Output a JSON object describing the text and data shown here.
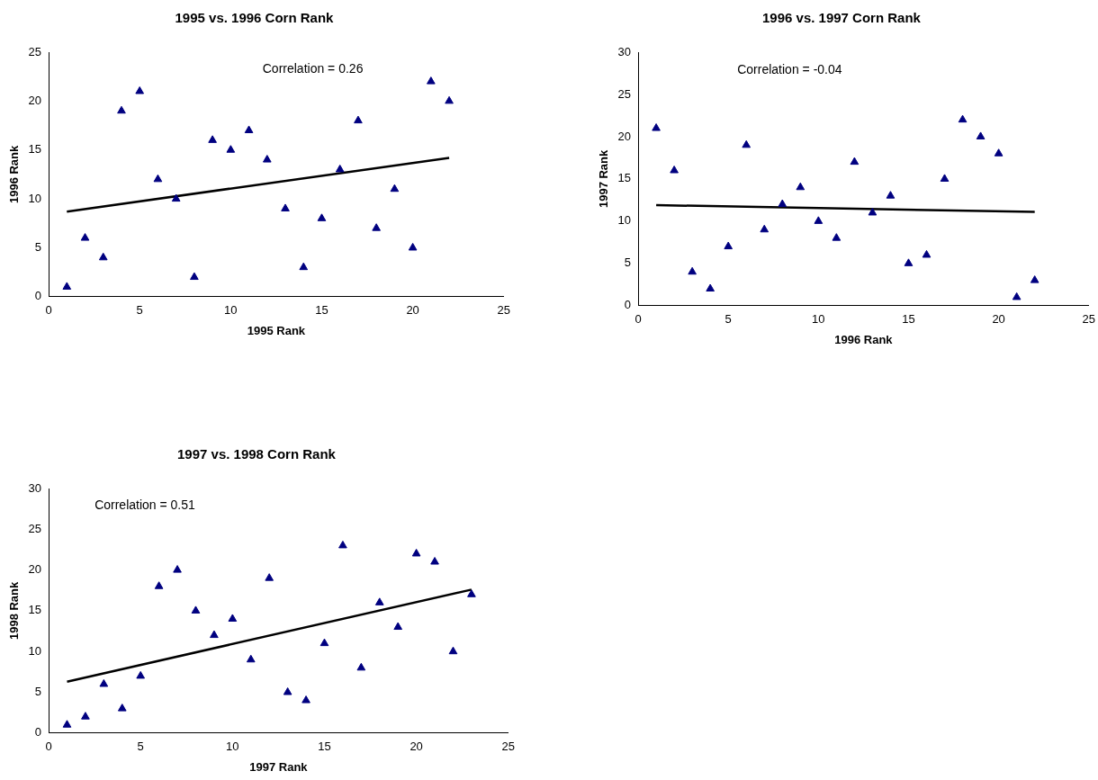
{
  "chart_data": [
    {
      "type": "scatter",
      "title": "1995 vs. 1996 Corn Rank",
      "xlabel": "1995 Rank",
      "ylabel": "1996 Rank",
      "xlim": [
        0,
        25
      ],
      "xticks": [
        0,
        5,
        10,
        15,
        20,
        25
      ],
      "ylim": [
        0,
        25
      ],
      "yticks": [
        0,
        5,
        10,
        15,
        20,
        25
      ],
      "grid": false,
      "legend": false,
      "annotations": [
        "Correlation = 0.26"
      ],
      "series": [
        {
          "color": "#000080",
          "marker": "triangle",
          "x": [
            1,
            2,
            3,
            4,
            5,
            6,
            7,
            8,
            9,
            10,
            11,
            12,
            13,
            14,
            15,
            16,
            17,
            18,
            19,
            20,
            21,
            22
          ],
          "values": [
            1,
            6,
            4,
            19,
            21,
            12,
            10,
            2,
            16,
            15,
            17,
            14,
            9,
            3,
            8,
            13,
            18,
            7,
            11,
            5,
            22,
            20
          ]
        },
        {
          "type": "line",
          "color": "#000000",
          "marker": "none",
          "x": [
            1,
            22
          ],
          "values": [
            8.7,
            14.2
          ]
        }
      ]
    },
    {
      "type": "scatter",
      "title": "1996 vs. 1997 Corn Rank",
      "xlabel": "1996 Rank",
      "ylabel": "1997 Rank",
      "xlim": [
        0,
        25
      ],
      "xticks": [
        0,
        5,
        10,
        15,
        20,
        25
      ],
      "ylim": [
        0,
        30
      ],
      "yticks": [
        0,
        5,
        10,
        15,
        20,
        25,
        30
      ],
      "grid": false,
      "legend": false,
      "annotations": [
        "Correlation = -0.04"
      ],
      "series": [
        {
          "color": "#000080",
          "marker": "triangle",
          "x": [
            1,
            2,
            3,
            4,
            5,
            6,
            7,
            8,
            9,
            10,
            11,
            12,
            13,
            14,
            15,
            16,
            17,
            18,
            19,
            20,
            21,
            22
          ],
          "values": [
            21,
            16,
            4,
            2,
            7,
            19,
            9,
            12,
            14,
            10,
            8,
            17,
            11,
            13,
            5,
            6,
            15,
            22,
            20,
            18,
            1,
            3
          ]
        },
        {
          "type": "line",
          "color": "#000000",
          "marker": "none",
          "x": [
            1,
            22
          ],
          "values": [
            11.9,
            11.1
          ]
        }
      ]
    },
    {
      "type": "scatter",
      "title": "1997 vs. 1998 Corn Rank",
      "xlabel": "1997 Rank",
      "ylabel": "1998 Rank",
      "xlim": [
        0,
        25
      ],
      "xticks": [
        0,
        5,
        10,
        15,
        20,
        25
      ],
      "ylim": [
        0,
        30
      ],
      "yticks": [
        0,
        5,
        10,
        15,
        20,
        25,
        30
      ],
      "grid": false,
      "legend": false,
      "annotations": [
        "Correlation = 0.51"
      ],
      "series": [
        {
          "color": "#000080",
          "marker": "triangle",
          "x": [
            1,
            2,
            3,
            4,
            5,
            6,
            7,
            8,
            9,
            10,
            11,
            12,
            13,
            14,
            15,
            16,
            17,
            18,
            19,
            20,
            21,
            22,
            23
          ],
          "values": [
            1,
            2,
            6,
            3,
            7,
            18,
            20,
            15,
            12,
            14,
            9,
            19,
            5,
            4,
            11,
            23,
            8,
            16,
            13,
            22,
            21,
            10,
            17
          ]
        },
        {
          "type": "line",
          "color": "#000000",
          "marker": "none",
          "x": [
            1,
            23
          ],
          "values": [
            6.3,
            17.6
          ]
        }
      ]
    }
  ]
}
